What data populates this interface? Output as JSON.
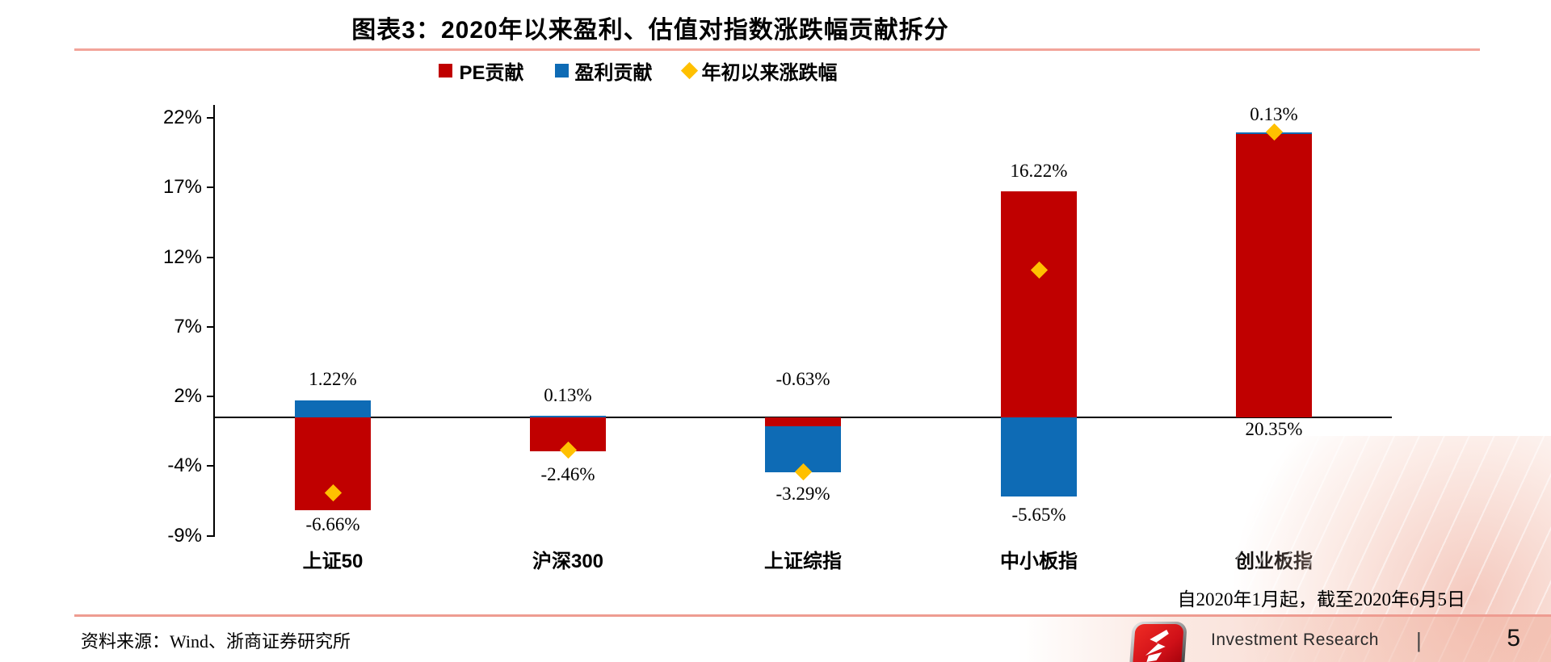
{
  "title": "图表3：2020年以来盈利、估值对指数涨跌幅贡献拆分",
  "legend": [
    {
      "label": "PE贡献",
      "marker": "square",
      "color": "#c00000"
    },
    {
      "label": "盈利贡献",
      "marker": "square",
      "color": "#0e6bb5"
    },
    {
      "label": "年初以来涨跌幅",
      "marker": "diamond",
      "color": "#ffc000"
    }
  ],
  "chart_data": {
    "type": "bar",
    "stacked": true,
    "legend_position": "top",
    "grid": false,
    "categories": [
      "上证50",
      "沪深300",
      "上证综指",
      "中小板指",
      "创业板指"
    ],
    "series": [
      {
        "name": "PE贡献",
        "color": "#c00000",
        "values": [
          -6.66,
          -2.46,
          -0.63,
          16.22,
          20.35
        ]
      },
      {
        "name": "盈利贡献",
        "color": "#0e6bb5",
        "values": [
          1.22,
          0.13,
          -3.29,
          -5.65,
          0.13
        ]
      },
      {
        "name": "年初以来涨跌幅",
        "type": "scatter",
        "marker": "diamond",
        "color": "#ffc000",
        "values": [
          -5.44,
          -2.33,
          -3.92,
          10.57,
          20.48
        ]
      }
    ],
    "data_labels": {
      "top": [
        "1.22%",
        "0.13%",
        "-0.63%",
        "16.22%",
        "0.13%"
      ],
      "bottom": [
        "-6.66%",
        "-2.46%",
        "-3.29%",
        "-5.65%",
        "20.35%"
      ]
    },
    "y_axis": {
      "tick_labels": [
        "22%",
        "17%",
        "12%",
        "7%",
        "2%",
        "-4%",
        "-9%"
      ],
      "tick_values": [
        21.5,
        16.5,
        11.5,
        6.5,
        1.5,
        -3.5,
        -8.5
      ],
      "unit": "%",
      "ylim": [
        -8.5,
        21.5
      ]
    },
    "xlabel": "",
    "ylabel": ""
  },
  "footnote": {
    "period": "自2020年1月起，截至2020年6月5日",
    "source": "资料来源：Wind、浙商证券研究所"
  },
  "footer": {
    "logo": "zheshang-securities-logo",
    "brand": "Investment Research",
    "separator": "|",
    "page": "5"
  },
  "colors": {
    "pe": "#c00000",
    "earnings": "#0e6bb5",
    "ytd_marker": "#ffc000",
    "rule_top": "#f2a49a",
    "rule_bottom": "#ee9c91",
    "axis": "#000000"
  }
}
